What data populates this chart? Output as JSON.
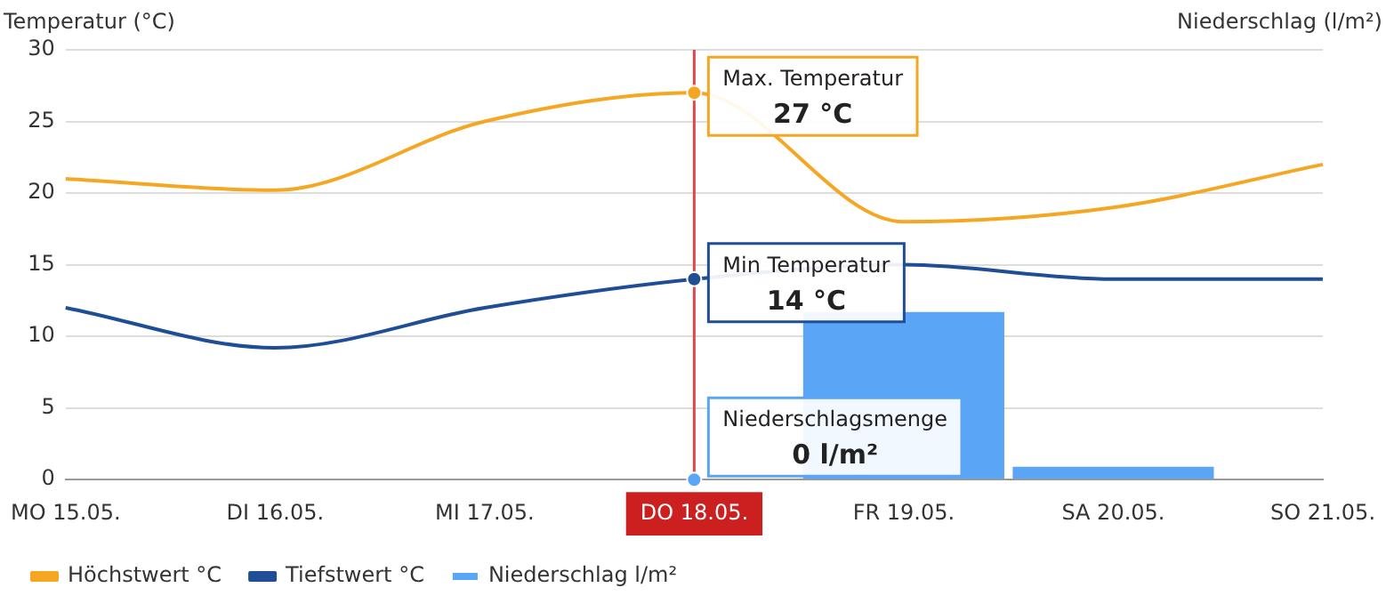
{
  "chart_data": {
    "type": "line",
    "ylabel": "Temperatur (°C)",
    "y2label": "Niederschlag (l/m²)",
    "categories": [
      "MO 15.05.",
      "DI 16.05.",
      "MI 17.05.",
      "DO 18.05.",
      "FR 19.05.",
      "SA 20.05.",
      "SO 21.05."
    ],
    "series": [
      {
        "name": "Höchstwert °C",
        "color": "#f5a623",
        "values": [
          21,
          20.2,
          25,
          27,
          18,
          19,
          22
        ]
      },
      {
        "name": "Tiefstwert °C",
        "color": "#1f4e96",
        "values": [
          12,
          9.2,
          12,
          14,
          15,
          14,
          14
        ]
      },
      {
        "name": "Niederschlag l/m²",
        "type": "bar",
        "color": "#5aa5f5",
        "values": [
          0,
          0,
          0,
          0,
          11.7,
          0.9,
          0
        ]
      }
    ],
    "ylim": [
      0,
      30
    ],
    "yticks": [
      0,
      5,
      10,
      15,
      20,
      25,
      30
    ],
    "grid": "y",
    "legend": "bottom",
    "marker": "none",
    "line_style": "solid",
    "ref_lines": [
      {
        "axis": "x",
        "value": "DO 18.05.",
        "color": "#e0474c"
      }
    ],
    "annotations": [
      {
        "text": "Max. Temperatur\n27 °C",
        "x": "DO 18.05.",
        "y": 27
      },
      {
        "text": "Min Temperatur\n14 °C",
        "x": "DO 18.05.",
        "y": 14
      },
      {
        "text": "Niederschlagsmenge\n0 l/m²",
        "x": "DO 18.05.",
        "y": 0
      }
    ]
  }
}
